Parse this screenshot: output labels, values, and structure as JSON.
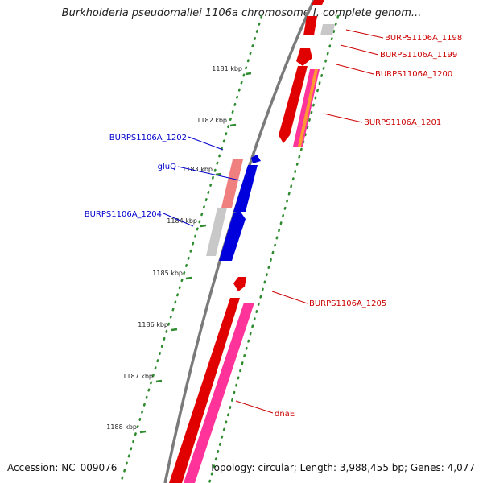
{
  "map": {
    "title": "Burkholderia pseudomallei 1106a chromosome I, complete genom...",
    "accession": "Accession: NC_009076",
    "topology": "Topology: circular; Length: 3,988,455 bp; Genes: 4,077"
  },
  "colors": {
    "backbone": "#7a7a7a",
    "tick": "#2e8b2e",
    "cds_forward": "#e00000",
    "cds_reverse": "#0000dd",
    "pseudo_forward": "#f08080",
    "pseudo_reverse": "#c8c8c8",
    "rna": "#ff3399",
    "label_forward": "#cc0000",
    "label_reverse": "#0000cc"
  },
  "ticks": [
    {
      "label": "1181 kbp"
    },
    {
      "label": "1182 kbp"
    },
    {
      "label": "1183 kbp"
    },
    {
      "label": "1184 kbp"
    },
    {
      "label": "1185 kbp"
    },
    {
      "label": "1186 kbp"
    },
    {
      "label": "1187 kbp"
    },
    {
      "label": "1188 kbp"
    }
  ],
  "features": [
    {
      "label": "BURPS1106A_1198",
      "strand": "forward"
    },
    {
      "label": "BURPS1106A_1199",
      "strand": "forward"
    },
    {
      "label": "BURPS1106A_1200",
      "strand": "forward"
    },
    {
      "label": "BURPS1106A_1201",
      "strand": "forward"
    },
    {
      "label": "BURPS1106A_1202",
      "strand": "reverse"
    },
    {
      "label": "gluQ",
      "strand": "reverse"
    },
    {
      "label": "BURPS1106A_1204",
      "strand": "reverse"
    },
    {
      "label": "BURPS1106A_1205",
      "strand": "forward"
    },
    {
      "label": "dnaE",
      "strand": "forward"
    }
  ]
}
